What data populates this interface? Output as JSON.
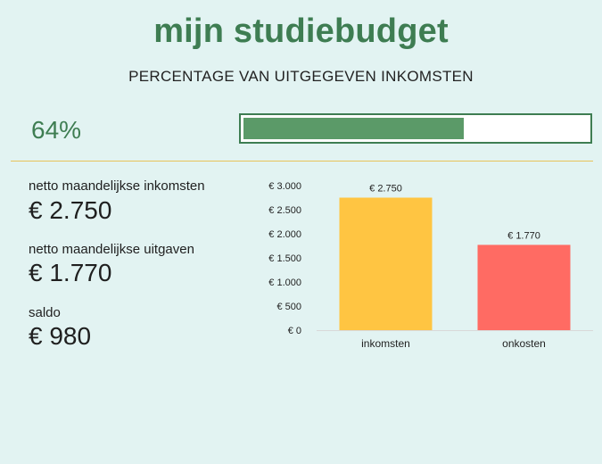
{
  "title": "mijn studiebudget",
  "subtitle": "PERCENTAGE VAN UITGEGEVEN INKOMSTEN",
  "progress": {
    "label": "64%",
    "fraction": 0.64
  },
  "stats": {
    "income_label": "netto maandelijkse inkomsten",
    "income_value": "€ 2.750",
    "expenses_label": "netto maandelijkse uitgaven",
    "expenses_value": "€ 1.770",
    "balance_label": "saldo",
    "balance_value": "€ 980"
  },
  "colors": {
    "accent_green": "#3e7d52",
    "bar_fill": "#5b9a68",
    "income_bar": "#ffc542",
    "expense_bar": "#ff6b63",
    "background": "#e2f3f2"
  },
  "chart_data": {
    "type": "bar",
    "categories": [
      "inkomsten",
      "onkosten"
    ],
    "values": [
      2750,
      1770
    ],
    "data_labels": [
      "€ 2.750",
      "€ 1.770"
    ],
    "ylim": [
      0,
      3000
    ],
    "yticks": [
      0,
      500,
      1000,
      1500,
      2000,
      2500,
      3000
    ],
    "ytick_labels": [
      "€ 0",
      "€ 500",
      "€ 1.000",
      "€ 1.500",
      "€ 2.000",
      "€ 2.500",
      "€ 3.000"
    ],
    "bar_colors": [
      "#ffc542",
      "#ff6b63"
    ],
    "grid": false
  }
}
